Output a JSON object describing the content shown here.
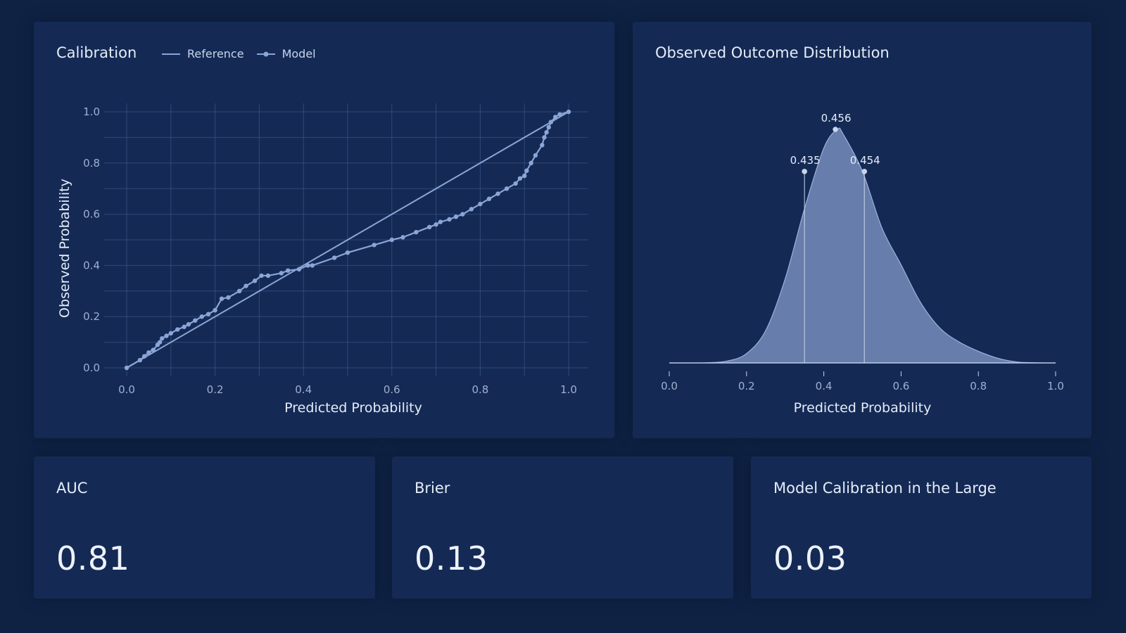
{
  "colors": {
    "background": "#0f2244",
    "panel": "#142a55",
    "grid": "#3a5686",
    "line": "#8aa5d6",
    "fill": "#7f95c4",
    "text": "#e6ecf7",
    "tick": "#9fb0d0"
  },
  "calibration": {
    "title": "Calibration",
    "legend": {
      "reference": "Reference",
      "model": "Model"
    }
  },
  "distribution": {
    "title": "Observed Outcome Distribution"
  },
  "kpis": {
    "auc": {
      "label": "AUC",
      "value": "0.81"
    },
    "brier": {
      "label": "Brier",
      "value": "0.13"
    },
    "citl": {
      "label": "Model Calibration in the Large",
      "value": "0.03"
    }
  },
  "chart_data": [
    {
      "type": "line",
      "title": "Calibration",
      "xlabel": "Predicted Probability",
      "ylabel": "Observed Probability",
      "xlim": [
        0,
        1
      ],
      "ylim": [
        0,
        1
      ],
      "xticks": [
        "0.0",
        "0.2",
        "0.4",
        "0.6",
        "0.8",
        "1.0"
      ],
      "yticks": [
        "0.0",
        "0.2",
        "0.4",
        "0.6",
        "0.8",
        "1.0"
      ],
      "grid": true,
      "legend_position": "top",
      "series": [
        {
          "name": "Reference",
          "x": [
            0,
            1
          ],
          "y": [
            0,
            1
          ]
        },
        {
          "name": "Model",
          "x": [
            0.0,
            0.03,
            0.04,
            0.05,
            0.06,
            0.07,
            0.075,
            0.08,
            0.09,
            0.1,
            0.115,
            0.13,
            0.14,
            0.155,
            0.17,
            0.185,
            0.2,
            0.215,
            0.23,
            0.255,
            0.27,
            0.29,
            0.305,
            0.32,
            0.35,
            0.365,
            0.39,
            0.41,
            0.42,
            0.47,
            0.5,
            0.56,
            0.6,
            0.625,
            0.655,
            0.685,
            0.7,
            0.71,
            0.73,
            0.745,
            0.76,
            0.78,
            0.8,
            0.82,
            0.84,
            0.86,
            0.88,
            0.89,
            0.9,
            0.905,
            0.915,
            0.925,
            0.94,
            0.945,
            0.95,
            0.955,
            0.96,
            0.97,
            0.98,
            1.0
          ],
          "y": [
            0.0,
            0.03,
            0.045,
            0.06,
            0.07,
            0.09,
            0.1,
            0.115,
            0.125,
            0.135,
            0.15,
            0.16,
            0.17,
            0.185,
            0.2,
            0.21,
            0.225,
            0.27,
            0.275,
            0.3,
            0.32,
            0.34,
            0.36,
            0.36,
            0.37,
            0.38,
            0.385,
            0.4,
            0.4,
            0.43,
            0.45,
            0.48,
            0.5,
            0.51,
            0.53,
            0.55,
            0.56,
            0.57,
            0.58,
            0.59,
            0.6,
            0.62,
            0.64,
            0.66,
            0.68,
            0.7,
            0.72,
            0.74,
            0.75,
            0.77,
            0.8,
            0.83,
            0.87,
            0.9,
            0.92,
            0.94,
            0.96,
            0.98,
            0.99,
            1.0
          ]
        }
      ]
    },
    {
      "type": "area",
      "title": "Observed Outcome Distribution",
      "xlabel": "Predicted Probability",
      "xlim": [
        0,
        1
      ],
      "xticks": [
        "0.0",
        "0.2",
        "0.4",
        "0.6",
        "0.8",
        "1.0"
      ],
      "grid": false,
      "x": [
        0.0,
        0.05,
        0.1,
        0.15,
        0.2,
        0.25,
        0.3,
        0.35,
        0.4,
        0.435,
        0.45,
        0.5,
        0.55,
        0.6,
        0.65,
        0.7,
        0.75,
        0.8,
        0.85,
        0.9,
        0.95,
        1.0
      ],
      "y": [
        0.0,
        0.0,
        0.001,
        0.008,
        0.04,
        0.14,
        0.36,
        0.66,
        0.92,
        1.0,
        0.98,
        0.82,
        0.58,
        0.42,
        0.26,
        0.15,
        0.09,
        0.05,
        0.02,
        0.004,
        0.001,
        0.0
      ],
      "annotations": [
        {
          "label": "0.435",
          "x": 0.35,
          "y": 0.82,
          "vline": true
        },
        {
          "label": "0.456",
          "x": 0.43,
          "y": 1.0,
          "vline": false
        },
        {
          "label": "0.454",
          "x": 0.505,
          "y": 0.82,
          "vline": true
        }
      ]
    }
  ]
}
